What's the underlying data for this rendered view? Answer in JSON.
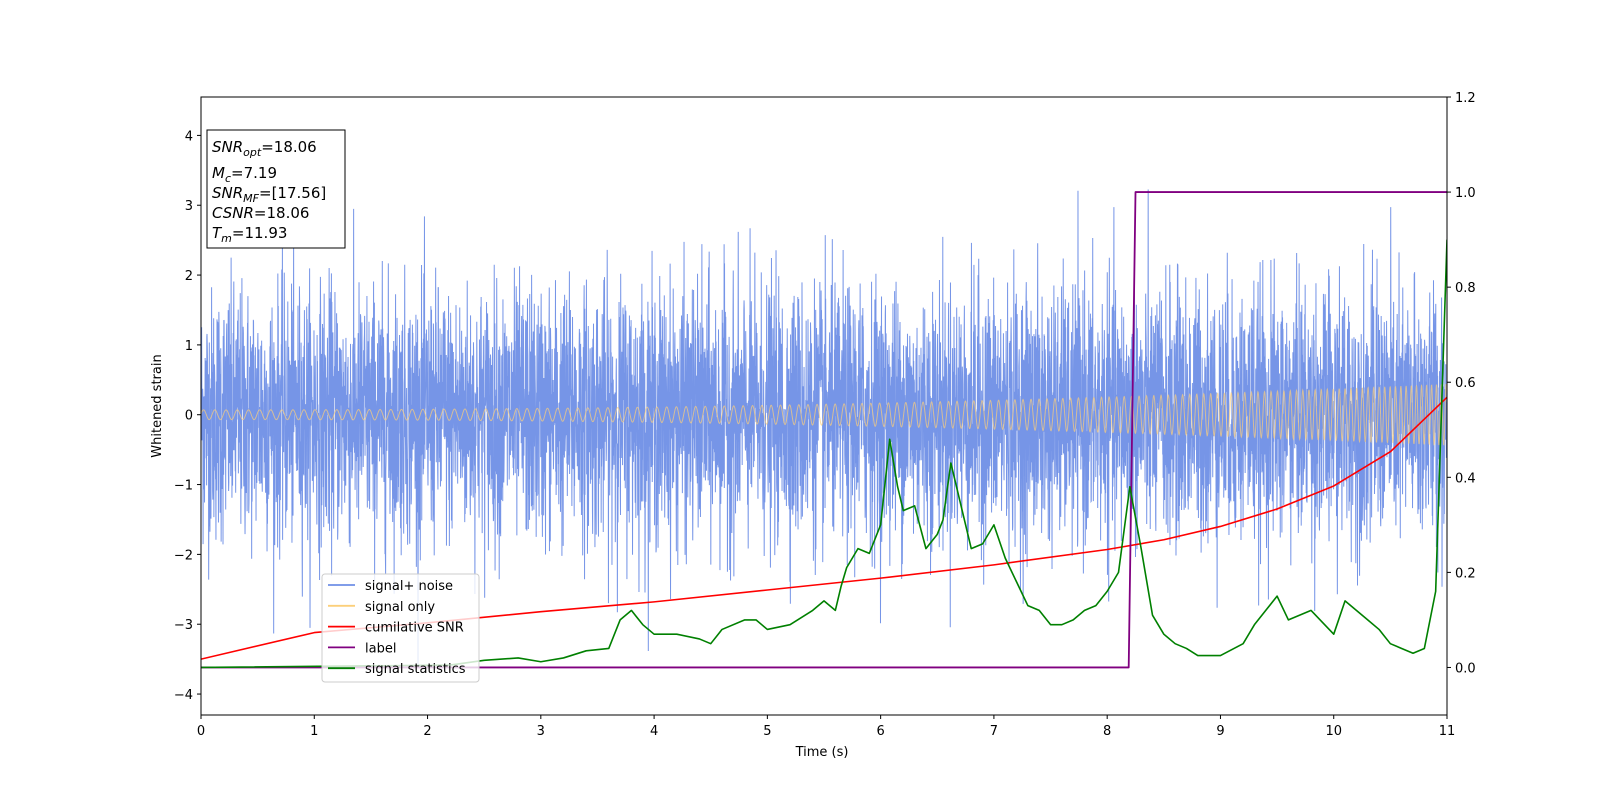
{
  "chart_data": {
    "type": "line",
    "xlabel": "Time (s)",
    "ylabel": "Whitened strain",
    "xlim": [
      0,
      11
    ],
    "ylim": [
      -4.3,
      4.55
    ],
    "y2lim": [
      -0.1,
      1.2
    ],
    "x_ticks": [
      0,
      1,
      2,
      3,
      4,
      5,
      6,
      7,
      8,
      9,
      10,
      11
    ],
    "y_ticks": [
      -4,
      -3,
      -2,
      -1,
      0,
      1,
      2,
      3,
      4
    ],
    "y2_ticks": [
      "0.0",
      "0.2",
      "0.4",
      "0.6",
      "0.8",
      "1.0",
      "1.2"
    ],
    "legend_position": "lower-left",
    "annotation": [
      {
        "base": "SNR",
        "sub": "opt",
        "value": "=18.06"
      },
      {
        "base": "M",
        "sub": "c",
        "value": "=7.19"
      },
      {
        "base": "SNR",
        "sub": "MF",
        "value": "=[17.56]"
      },
      {
        "base": "CSNR",
        "sub": "",
        "value": "=18.06"
      },
      {
        "base": "T",
        "sub": "m",
        "value": "=11.93"
      }
    ],
    "series": [
      {
        "name": "signal+ noise",
        "color": "#6f8fe6",
        "axis": "left",
        "noise_sigma": 0.9,
        "noise_max_abs": 3.7
      },
      {
        "name": "signal only",
        "color": "#fccf7a",
        "axis": "left",
        "amplitude_start": 0.07,
        "amplitude_end": 0.44
      },
      {
        "name": "cumilative SNR",
        "color": "#ff0000",
        "axis": "left",
        "x": [
          0,
          1,
          2,
          3,
          4,
          5,
          6,
          7,
          8,
          8.5,
          9,
          9.5,
          10,
          10.5,
          11
        ],
        "values": [
          -3.5,
          -3.12,
          -2.98,
          -2.82,
          -2.68,
          -2.51,
          -2.34,
          -2.15,
          -1.93,
          -1.79,
          -1.6,
          -1.35,
          -1.02,
          -0.53,
          0.25
        ]
      },
      {
        "name": "label",
        "color": "#800080",
        "axis": "right",
        "x": [
          0,
          8.19,
          8.25,
          11
        ],
        "values": [
          0,
          0,
          1,
          1
        ]
      },
      {
        "name": "signal statistics",
        "color": "#008000",
        "axis": "right",
        "x": [
          0,
          2.2,
          2.5,
          2.8,
          3.0,
          3.2,
          3.4,
          3.6,
          3.7,
          3.8,
          3.9,
          4.0,
          4.2,
          4.4,
          4.5,
          4.6,
          4.8,
          4.9,
          5.0,
          5.2,
          5.4,
          5.5,
          5.6,
          5.65,
          5.7,
          5.8,
          5.9,
          6.0,
          6.08,
          6.15,
          6.2,
          6.3,
          6.4,
          6.5,
          6.55,
          6.62,
          6.7,
          6.8,
          6.9,
          7.0,
          7.1,
          7.2,
          7.3,
          7.4,
          7.5,
          7.6,
          7.7,
          7.8,
          7.9,
          8.0,
          8.1,
          8.2,
          8.3,
          8.4,
          8.5,
          8.6,
          8.7,
          8.8,
          9.0,
          9.2,
          9.3,
          9.4,
          9.5,
          9.6,
          9.8,
          10.0,
          10.1,
          10.2,
          10.3,
          10.4,
          10.5,
          10.6,
          10.7,
          10.8,
          10.9,
          11.0
        ],
        "values": [
          0,
          0.005,
          0.015,
          0.02,
          0.012,
          0.02,
          0.035,
          0.04,
          0.1,
          0.12,
          0.09,
          0.07,
          0.07,
          0.06,
          0.05,
          0.08,
          0.1,
          0.1,
          0.08,
          0.09,
          0.12,
          0.14,
          0.12,
          0.17,
          0.21,
          0.25,
          0.24,
          0.3,
          0.48,
          0.38,
          0.33,
          0.34,
          0.25,
          0.28,
          0.31,
          0.43,
          0.35,
          0.25,
          0.26,
          0.3,
          0.23,
          0.18,
          0.13,
          0.12,
          0.09,
          0.09,
          0.1,
          0.12,
          0.13,
          0.16,
          0.2,
          0.38,
          0.25,
          0.11,
          0.07,
          0.05,
          0.04,
          0.025,
          0.025,
          0.05,
          0.09,
          0.12,
          0.15,
          0.1,
          0.12,
          0.07,
          0.14,
          0.12,
          0.1,
          0.08,
          0.05,
          0.04,
          0.03,
          0.04,
          0.16,
          0.9
        ]
      }
    ]
  }
}
